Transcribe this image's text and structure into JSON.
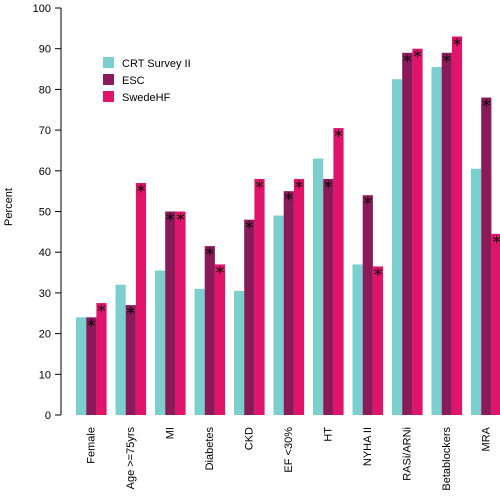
{
  "chart_data": {
    "type": "bar",
    "ylabel": "Percent",
    "xlabel": "",
    "ylim": [
      0,
      100
    ],
    "yticks": [
      0,
      10,
      20,
      30,
      40,
      50,
      60,
      70,
      80,
      90,
      100
    ],
    "grid": false,
    "legend_position": "top-left",
    "categories": [
      "Female",
      "Age >=75yrs",
      "MI",
      "Diabetes",
      "CKD",
      "EF <30%",
      "HT",
      "NYHA II",
      "RASi/ARNi",
      "Betablockers",
      "MRA"
    ],
    "series": [
      {
        "name": "CRT Survey II",
        "color": "#7ccfcf",
        "values": [
          24,
          32,
          35.5,
          31,
          30.5,
          49,
          63,
          37,
          82.5,
          85.5,
          60.5
        ]
      },
      {
        "name": "ESC",
        "color": "#8b1a5a",
        "values": [
          24,
          27,
          50,
          41.5,
          48,
          55,
          58,
          54,
          89,
          89,
          78
        ]
      },
      {
        "name": "SwedeHF",
        "color": "#e0146b",
        "values": [
          27.5,
          57,
          50,
          37,
          58,
          58,
          70.5,
          36.5,
          90,
          93,
          44.5
        ]
      }
    ],
    "significance_markers": [
      {
        "category": "Female",
        "series": "ESC",
        "marker": "*"
      },
      {
        "category": "Female",
        "series": "SwedeHF",
        "marker": "*"
      },
      {
        "category": "Age >=75yrs",
        "series": "ESC",
        "marker": "*"
      },
      {
        "category": "Age >=75yrs",
        "series": "SwedeHF",
        "marker": "*"
      },
      {
        "category": "MI",
        "series": "ESC",
        "marker": "*"
      },
      {
        "category": "MI",
        "series": "SwedeHF",
        "marker": "*"
      },
      {
        "category": "Diabetes",
        "series": "ESC",
        "marker": "*"
      },
      {
        "category": "Diabetes",
        "series": "SwedeHF",
        "marker": "*"
      },
      {
        "category": "CKD",
        "series": "ESC",
        "marker": "*"
      },
      {
        "category": "CKD",
        "series": "SwedeHF",
        "marker": "*"
      },
      {
        "category": "EF <30%",
        "series": "ESC",
        "marker": "*"
      },
      {
        "category": "EF <30%",
        "series": "SwedeHF",
        "marker": "*"
      },
      {
        "category": "HT",
        "series": "ESC",
        "marker": "*"
      },
      {
        "category": "HT",
        "series": "SwedeHF",
        "marker": "*"
      },
      {
        "category": "NYHA II",
        "series": "ESC",
        "marker": "*"
      },
      {
        "category": "NYHA II",
        "series": "SwedeHF",
        "marker": "*"
      },
      {
        "category": "RASi/ARNi",
        "series": "ESC",
        "marker": "*"
      },
      {
        "category": "RASi/ARNi",
        "series": "SwedeHF",
        "marker": "*"
      },
      {
        "category": "Betablockers",
        "series": "ESC",
        "marker": "*"
      },
      {
        "category": "Betablockers",
        "series": "SwedeHF",
        "marker": "*"
      },
      {
        "category": "MRA",
        "series": "ESC",
        "marker": "*"
      },
      {
        "category": "MRA",
        "series": "SwedeHF",
        "marker": "*"
      }
    ]
  }
}
